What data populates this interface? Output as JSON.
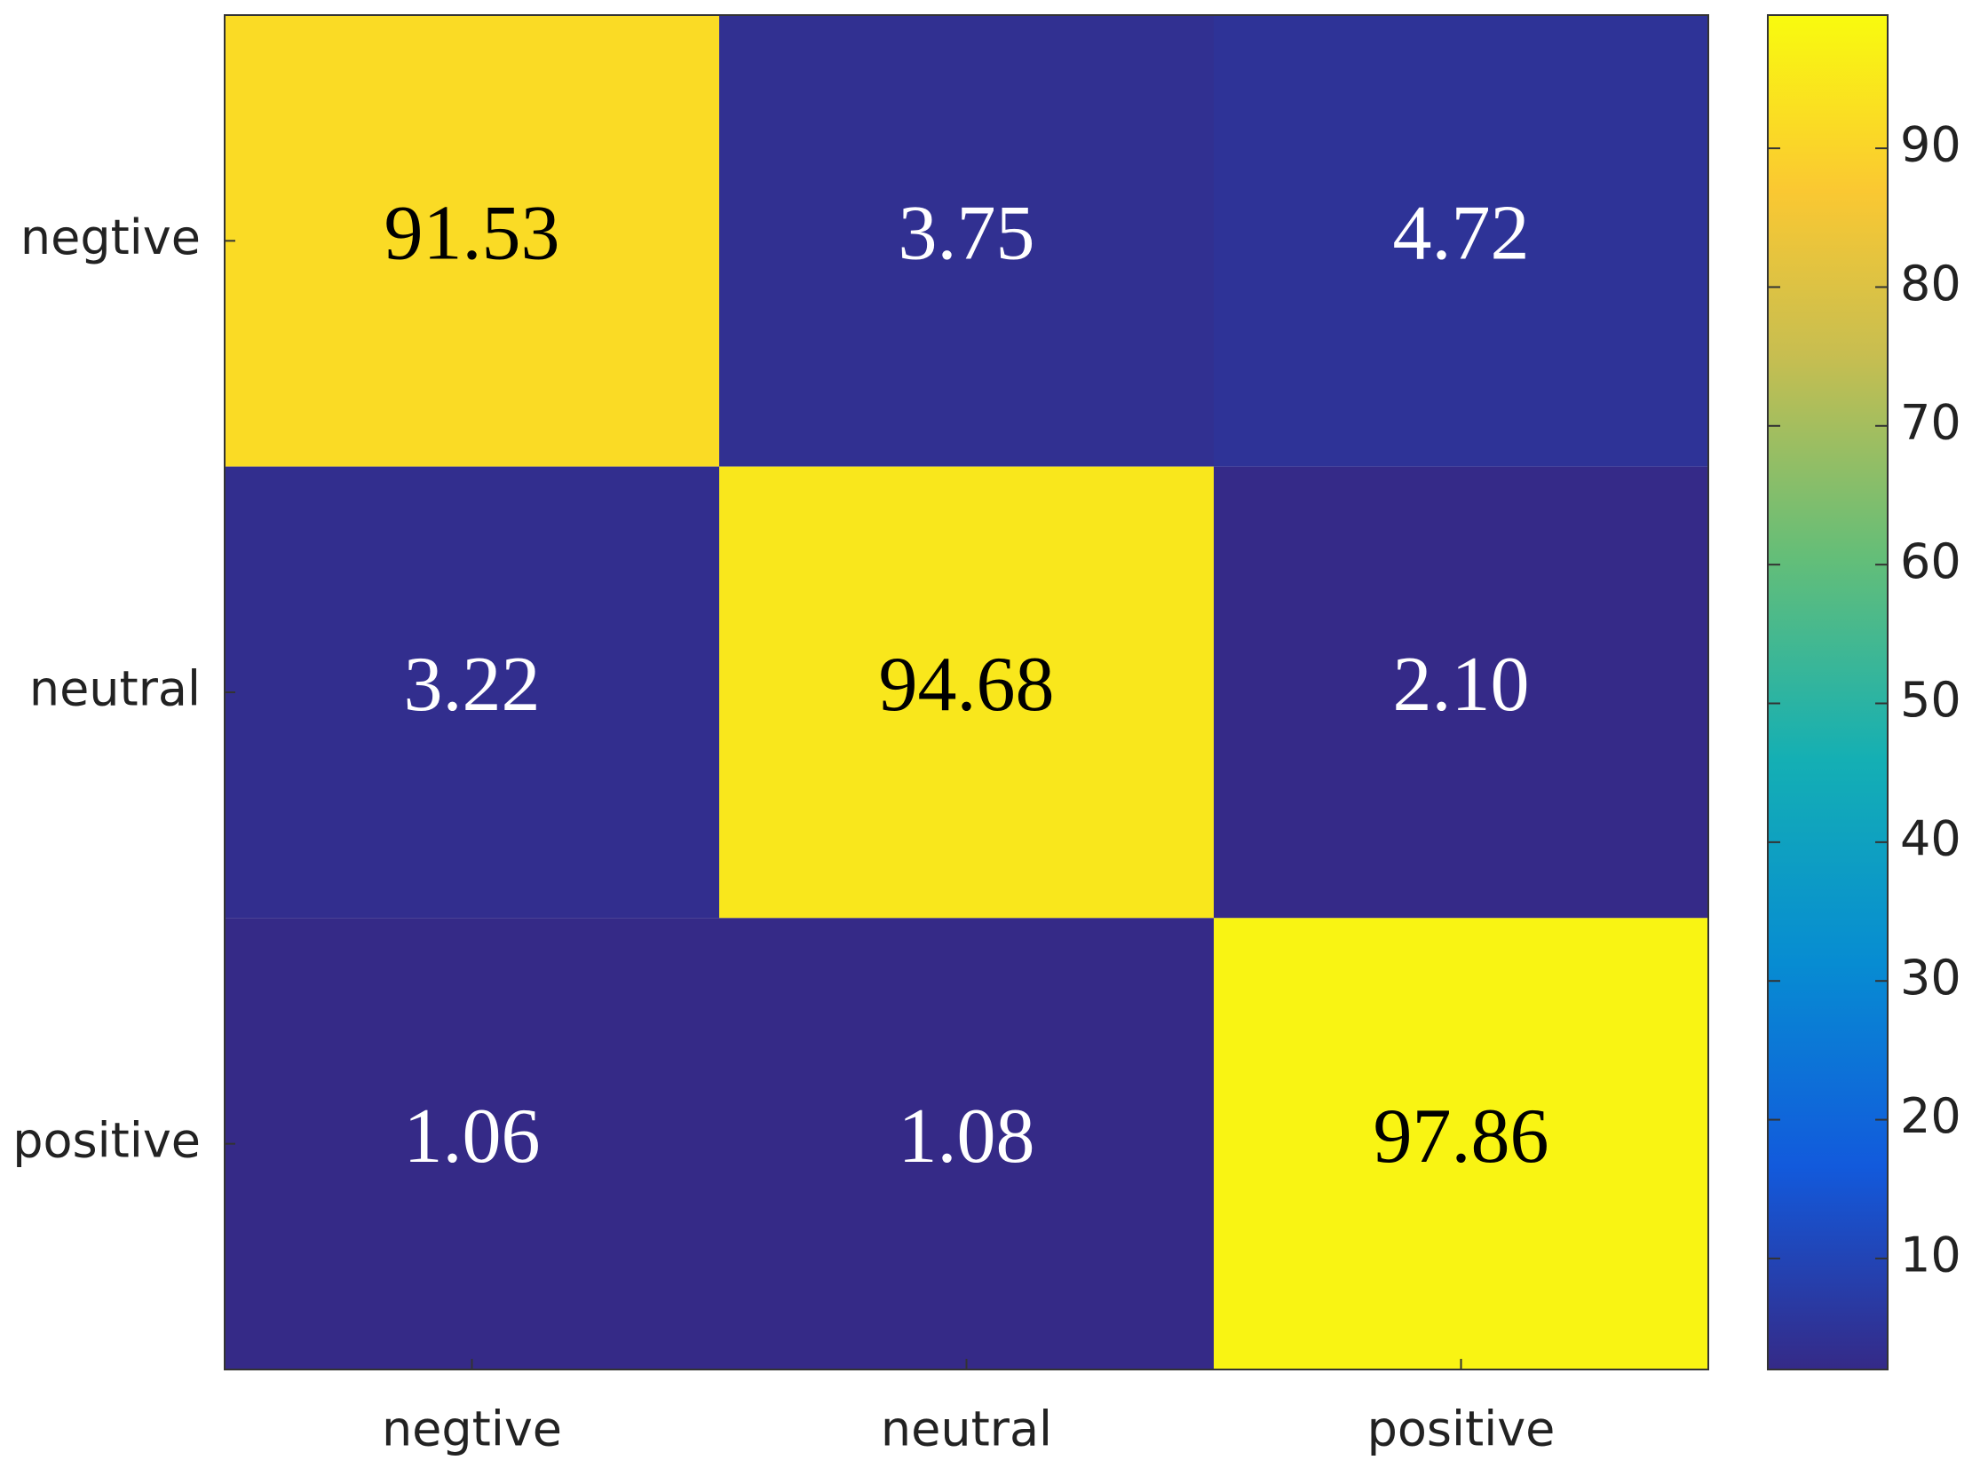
{
  "chart_data": {
    "type": "heatmap",
    "x_categories": [
      "negtive",
      "neutral",
      "positive"
    ],
    "y_categories": [
      "negtive",
      "neutral",
      "positive"
    ],
    "values": [
      [
        91.53,
        3.75,
        4.72
      ],
      [
        3.22,
        94.68,
        2.1
      ],
      [
        1.06,
        1.08,
        97.86
      ]
    ],
    "value_labels": [
      [
        "91.53",
        "3.75",
        "4.72"
      ],
      [
        "3.22",
        "94.68",
        "2.10"
      ],
      [
        "1.06",
        "1.08",
        "97.86"
      ]
    ],
    "colormap": "parula",
    "clim": [
      2,
      99.6
    ],
    "colorbar_ticks": [
      10,
      20,
      30,
      40,
      50,
      60,
      70,
      80,
      90
    ]
  }
}
